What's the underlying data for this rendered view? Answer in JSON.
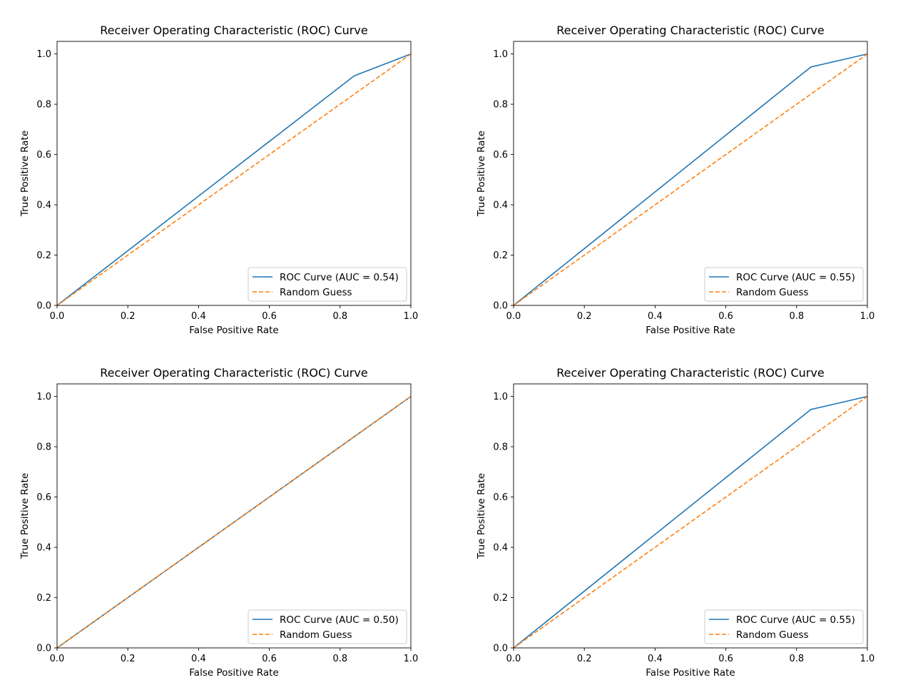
{
  "chart_data": [
    {
      "type": "line",
      "title": "Receiver Operating Characteristic (ROC) Curve",
      "xlabel": "False Positive Rate",
      "ylabel": "True Positive Rate",
      "xlim": [
        0,
        1
      ],
      "ylim": [
        0,
        1.05
      ],
      "xticks": [
        "0.0",
        "0.2",
        "0.4",
        "0.6",
        "0.8",
        "1.0"
      ],
      "yticks": [
        "0.0",
        "0.2",
        "0.4",
        "0.6",
        "0.8",
        "1.0"
      ],
      "grid": false,
      "legend_position": "lower-right",
      "series": [
        {
          "name": "ROC Curve (AUC = 0.54)",
          "style": "solid",
          "color": "#1f77b4",
          "x": [
            0,
            0.84,
            1
          ],
          "y": [
            0,
            0.913,
            1
          ]
        },
        {
          "name": "Random Guess",
          "style": "dashed",
          "color": "#ff7f0e",
          "x": [
            0,
            1
          ],
          "y": [
            0,
            1
          ]
        }
      ]
    },
    {
      "type": "line",
      "title": "Receiver Operating Characteristic (ROC) Curve",
      "xlabel": "False Positive Rate",
      "ylabel": "True Positive Rate",
      "xlim": [
        0,
        1
      ],
      "ylim": [
        0,
        1.05
      ],
      "xticks": [
        "0.0",
        "0.2",
        "0.4",
        "0.6",
        "0.8",
        "1.0"
      ],
      "yticks": [
        "0.0",
        "0.2",
        "0.4",
        "0.6",
        "0.8",
        "1.0"
      ],
      "grid": false,
      "legend_position": "lower-right",
      "series": [
        {
          "name": "ROC Curve (AUC = 0.55)",
          "style": "solid",
          "color": "#1f77b4",
          "x": [
            0,
            0.84,
            1
          ],
          "y": [
            0,
            0.948,
            1
          ]
        },
        {
          "name": "Random Guess",
          "style": "dashed",
          "color": "#ff7f0e",
          "x": [
            0,
            1
          ],
          "y": [
            0,
            1
          ]
        }
      ]
    },
    {
      "type": "line",
      "title": "Receiver Operating Characteristic (ROC) Curve",
      "xlabel": "False Positive Rate",
      "ylabel": "True Positive Rate",
      "xlim": [
        0,
        1
      ],
      "ylim": [
        0,
        1.05
      ],
      "xticks": [
        "0.0",
        "0.2",
        "0.4",
        "0.6",
        "0.8",
        "1.0"
      ],
      "yticks": [
        "0.0",
        "0.2",
        "0.4",
        "0.6",
        "0.8",
        "1.0"
      ],
      "grid": false,
      "legend_position": "lower-right",
      "series": [
        {
          "name": "ROC Curve (AUC = 0.50)",
          "style": "solid",
          "color": "#1f77b4",
          "x": [
            0,
            1
          ],
          "y": [
            0,
            1
          ]
        },
        {
          "name": "Random Guess",
          "style": "dashed",
          "color": "#ff7f0e",
          "x": [
            0,
            1
          ],
          "y": [
            0,
            1
          ]
        }
      ]
    },
    {
      "type": "line",
      "title": "Receiver Operating Characteristic (ROC) Curve",
      "xlabel": "False Positive Rate",
      "ylabel": "True Positive Rate",
      "xlim": [
        0,
        1
      ],
      "ylim": [
        0,
        1.05
      ],
      "xticks": [
        "0.0",
        "0.2",
        "0.4",
        "0.6",
        "0.8",
        "1.0"
      ],
      "yticks": [
        "0.0",
        "0.2",
        "0.4",
        "0.6",
        "0.8",
        "1.0"
      ],
      "grid": false,
      "legend_position": "lower-right",
      "series": [
        {
          "name": "ROC Curve (AUC = 0.55)",
          "style": "solid",
          "color": "#1f77b4",
          "x": [
            0,
            0.84,
            1
          ],
          "y": [
            0,
            0.948,
            1
          ]
        },
        {
          "name": "Random Guess",
          "style": "dashed",
          "color": "#ff7f0e",
          "x": [
            0,
            1
          ],
          "y": [
            0,
            1
          ]
        }
      ]
    }
  ]
}
